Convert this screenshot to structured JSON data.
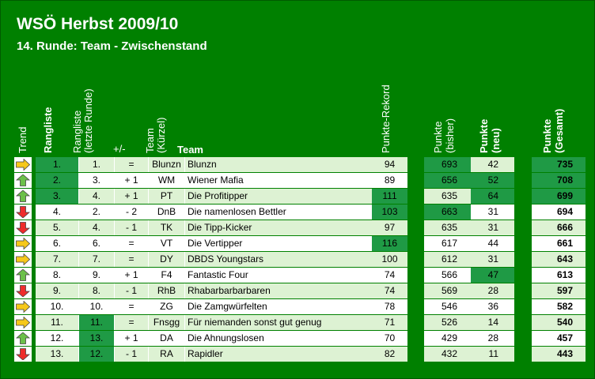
{
  "title": "WSÖ Herbst 2009/10",
  "subtitle": "14. Runde: Team - Zwischenstand",
  "headers": {
    "trend": "Trend",
    "rangliste": "Rangliste",
    "rangliste_letzte_line1": "Rangliste",
    "rangliste_letzte_line2": "(letzte Runde)",
    "plusminus": "+/-",
    "team_kuerzel_line1": "Team",
    "team_kuerzel_line2": "(Kürzel)",
    "team": "Team",
    "punkte_rekord": "Punkte-Rekord",
    "punkte_bisher_line1": "Punkte",
    "punkte_bisher_line2": "(bisher)",
    "punkte_neu_line1": "Punkte",
    "punkte_neu_line2": "(neu)",
    "punkte_gesamt_line1": "Punkte",
    "punkte_gesamt_line2": "(Gesamt)"
  },
  "colors": {
    "background": "#008000",
    "light_row": "#ddf2d3",
    "white_row": "#ffffff",
    "highlight": "#1f9a45",
    "arrow_up": "#6cc04a",
    "arrow_down": "#ee2c2c",
    "arrow_same": "#f6c81a"
  },
  "rows": [
    {
      "trend": "same",
      "rank": "1.",
      "last": "1.",
      "pm": "=",
      "abbr": "Blunzn",
      "team": "Blunzn",
      "rec": "94",
      "prev": "693",
      "new": "42",
      "tot": "735",
      "hl_rank": true,
      "hl_last": false,
      "hl_rec": false,
      "hl_prev": true,
      "hl_new": false,
      "hl_tot": true
    },
    {
      "trend": "up",
      "rank": "2.",
      "last": "3.",
      "pm": "+ 1",
      "abbr": "WM",
      "team": "Wiener Mafia",
      "rec": "89",
      "prev": "656",
      "new": "52",
      "tot": "708",
      "hl_rank": true,
      "hl_last": false,
      "hl_rec": false,
      "hl_prev": true,
      "hl_new": true,
      "hl_tot": true
    },
    {
      "trend": "up",
      "rank": "3.",
      "last": "4.",
      "pm": "+ 1",
      "abbr": "PT",
      "team": "Die Profitipper",
      "rec": "111",
      "prev": "635",
      "new": "64",
      "tot": "699",
      "hl_rank": true,
      "hl_last": false,
      "hl_rec": true,
      "hl_prev": false,
      "hl_new": true,
      "hl_tot": true
    },
    {
      "trend": "down",
      "rank": "4.",
      "last": "2.",
      "pm": "- 2",
      "abbr": "DnB",
      "team": "Die namenlosen Bettler",
      "rec": "103",
      "prev": "663",
      "new": "31",
      "tot": "694",
      "hl_rank": false,
      "hl_last": false,
      "hl_rec": true,
      "hl_prev": true,
      "hl_new": false,
      "hl_tot": false
    },
    {
      "trend": "down",
      "rank": "5.",
      "last": "4.",
      "pm": "- 1",
      "abbr": "TK",
      "team": "Die Tipp-Kicker",
      "rec": "97",
      "prev": "635",
      "new": "31",
      "tot": "666",
      "hl_rank": false,
      "hl_last": false,
      "hl_rec": false,
      "hl_prev": false,
      "hl_new": false,
      "hl_tot": false
    },
    {
      "trend": "same",
      "rank": "6.",
      "last": "6.",
      "pm": "=",
      "abbr": "VT",
      "team": "Die Vertipper",
      "rec": "116",
      "prev": "617",
      "new": "44",
      "tot": "661",
      "hl_rank": false,
      "hl_last": false,
      "hl_rec": true,
      "hl_prev": false,
      "hl_new": false,
      "hl_tot": false
    },
    {
      "trend": "same",
      "rank": "7.",
      "last": "7.",
      "pm": "=",
      "abbr": "DY",
      "team": "DBDS Youngstars",
      "rec": "100",
      "prev": "612",
      "new": "31",
      "tot": "643",
      "hl_rank": false,
      "hl_last": false,
      "hl_rec": false,
      "hl_prev": false,
      "hl_new": false,
      "hl_tot": false
    },
    {
      "trend": "up",
      "rank": "8.",
      "last": "9.",
      "pm": "+ 1",
      "abbr": "F4",
      "team": "Fantastic Four",
      "rec": "74",
      "prev": "566",
      "new": "47",
      "tot": "613",
      "hl_rank": false,
      "hl_last": false,
      "hl_rec": false,
      "hl_prev": false,
      "hl_new": true,
      "hl_tot": false
    },
    {
      "trend": "down",
      "rank": "9.",
      "last": "8.",
      "pm": "- 1",
      "abbr": "RhB",
      "team": "Rhabarbarbarbaren",
      "rec": "74",
      "prev": "569",
      "new": "28",
      "tot": "597",
      "hl_rank": false,
      "hl_last": false,
      "hl_rec": false,
      "hl_prev": false,
      "hl_new": false,
      "hl_tot": false
    },
    {
      "trend": "same",
      "rank": "10.",
      "last": "10.",
      "pm": "=",
      "abbr": "ZG",
      "team": "Die Zamgwürfelten",
      "rec": "78",
      "prev": "546",
      "new": "36",
      "tot": "582",
      "hl_rank": false,
      "hl_last": false,
      "hl_rec": false,
      "hl_prev": false,
      "hl_new": false,
      "hl_tot": false
    },
    {
      "trend": "same",
      "rank": "11.",
      "last": "11.",
      "pm": "=",
      "abbr": "Fnsgg",
      "team": "Für niemanden sonst gut genug",
      "rec": "71",
      "prev": "526",
      "new": "14",
      "tot": "540",
      "hl_rank": false,
      "hl_last": true,
      "hl_rec": false,
      "hl_prev": false,
      "hl_new": false,
      "hl_tot": false
    },
    {
      "trend": "up",
      "rank": "12.",
      "last": "13.",
      "pm": "+ 1",
      "abbr": "DA",
      "team": "Die Ahnungslosen",
      "rec": "70",
      "prev": "429",
      "new": "28",
      "tot": "457",
      "hl_rank": false,
      "hl_last": true,
      "hl_rec": false,
      "hl_prev": false,
      "hl_new": false,
      "hl_tot": false
    },
    {
      "trend": "down",
      "rank": "13.",
      "last": "12.",
      "pm": "- 1",
      "abbr": "RA",
      "team": "Rapidler",
      "rec": "82",
      "prev": "432",
      "new": "11",
      "tot": "443",
      "hl_rank": false,
      "hl_last": true,
      "hl_rec": false,
      "hl_prev": false,
      "hl_new": false,
      "hl_tot": false
    }
  ]
}
